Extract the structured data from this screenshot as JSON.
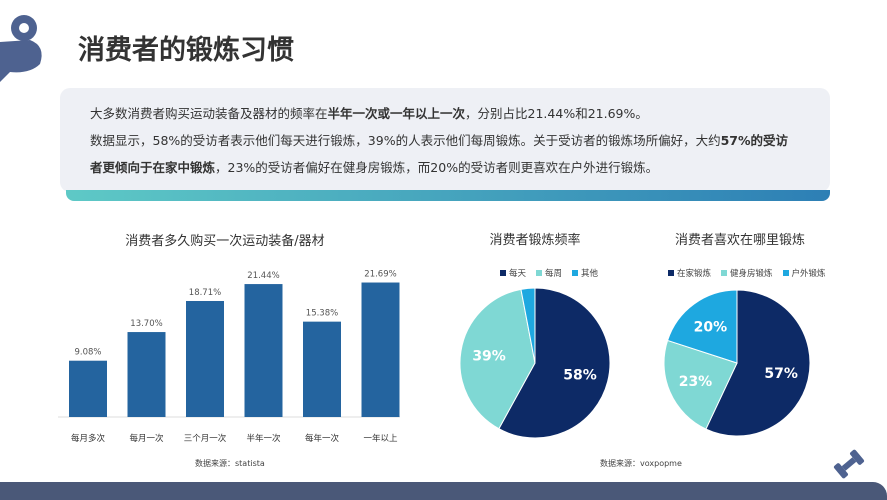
{
  "title": "消费者的锻炼习惯",
  "summary": {
    "line1_pre": "大多数消费者购买运动装备及器材的频率在",
    "line1_bold": "半年一次或一年以上一次",
    "line1_post": "，分别占比21.44%和21.69%。",
    "line2_pre": "数据显示，58%的受访者表示他们每天进行锻炼，39%的人表示他们每周锻炼。关于受访者的锻炼场所偏好，大约",
    "line2_bold": "57%的受访者更倾向于在家中锻炼",
    "line2_post": "，23%的受访者偏好在健身房锻炼，而20%的受访者则更喜欢在户外进行锻炼。"
  },
  "chart_data": [
    {
      "type": "bar",
      "title": "消费者多久购买一次运动装备/器材",
      "categories": [
        "每月多次",
        "每月一次",
        "三个月一次",
        "半年一次",
        "每年一次",
        "一年以上"
      ],
      "values": [
        9.08,
        13.7,
        18.71,
        21.44,
        15.38,
        21.69
      ],
      "labels": [
        "9.08%",
        "13.70%",
        "18.71%",
        "21.44%",
        "15.38%",
        "21.69%"
      ],
      "color": "#24649f",
      "source": "数据来源：statista"
    },
    {
      "type": "pie",
      "title": "消费者锻炼频率",
      "categories": [
        "每天",
        "每周",
        "其他"
      ],
      "values": [
        58,
        39,
        3
      ],
      "labels": [
        "58%",
        "39%",
        ""
      ],
      "colors": [
        "#0d2a66",
        "#7fd8d4",
        "#1ea8e0"
      ],
      "legend": "top"
    },
    {
      "type": "pie",
      "title": "消费者喜欢在哪里锻炼",
      "categories": [
        "在家锻炼",
        "健身房锻炼",
        "户外锻炼"
      ],
      "values": [
        57,
        23,
        20
      ],
      "labels": [
        "57%",
        "23%",
        "20%"
      ],
      "colors": [
        "#0d2a66",
        "#7fd8d4",
        "#1ea8e0"
      ],
      "legend": "top",
      "source": "数据来源：voxpopme"
    }
  ],
  "icons": [
    "muscle-arm-icon",
    "dumbbell-icon"
  ]
}
